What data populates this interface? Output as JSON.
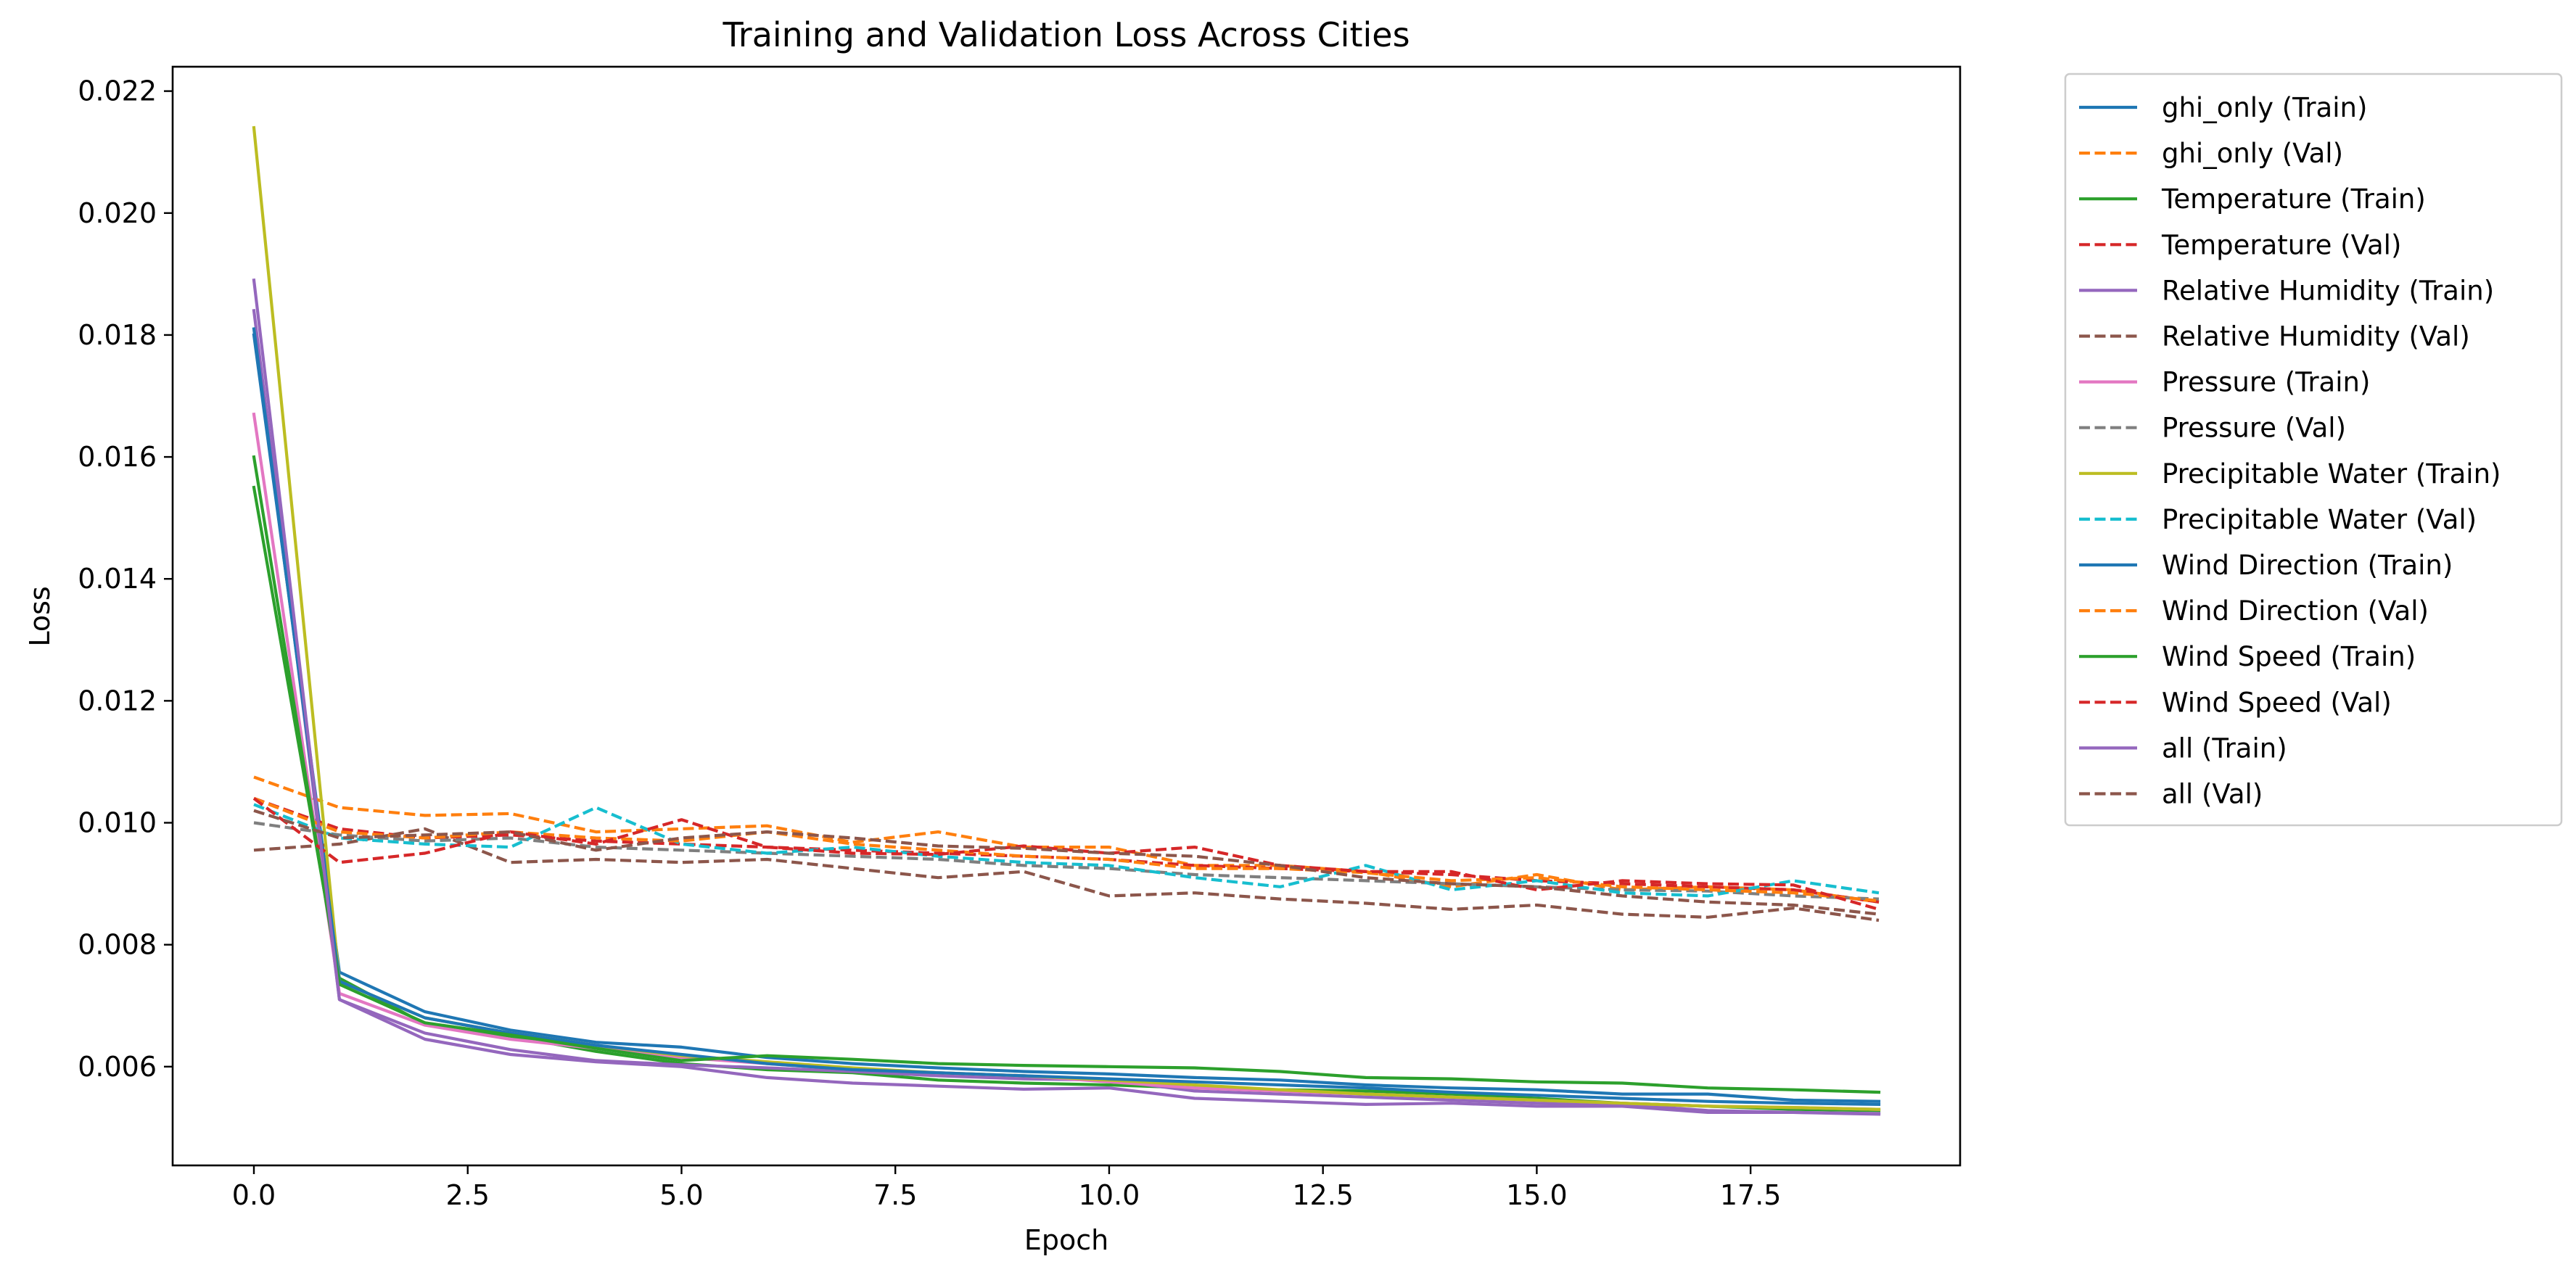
{
  "chart_data": {
    "type": "line",
    "title": "Training and Validation Loss Across Cities",
    "xlabel": "Epoch",
    "ylabel": "Loss",
    "xlim": [
      -0.95,
      19.95
    ],
    "ylim": [
      0.00438,
      0.0224
    ],
    "x_ticks": [
      0,
      2.5,
      5,
      7.5,
      10,
      12.5,
      15,
      17.5
    ],
    "x_tick_labels": [
      "0.0",
      "2.5",
      "5.0",
      "7.5",
      "10.0",
      "12.5",
      "15.0",
      "17.5"
    ],
    "y_ticks": [
      0.006,
      0.008,
      0.01,
      0.012,
      0.014,
      0.016,
      0.018,
      0.02,
      0.022
    ],
    "y_tick_labels": [
      "0.006",
      "0.008",
      "0.010",
      "0.012",
      "0.014",
      "0.016",
      "0.018",
      "0.020",
      "0.022"
    ],
    "grid": false,
    "legend_position": "outside-right",
    "x": [
      0,
      1,
      2,
      3,
      4,
      5,
      6,
      7,
      8,
      9,
      10,
      11,
      12,
      13,
      14,
      15,
      16,
      17,
      18,
      19
    ],
    "series": [
      {
        "name": "ghi_only (Train)",
        "color": "#1f77b4",
        "style": "solid",
        "values": [
          0.018,
          0.00755,
          0.0069,
          0.0066,
          0.0064,
          0.00632,
          0.00615,
          0.00605,
          0.00598,
          0.00592,
          0.00588,
          0.00582,
          0.00578,
          0.0057,
          0.00565,
          0.00562,
          0.00555,
          0.00555,
          0.00545,
          0.00543
        ]
      },
      {
        "name": "ghi_only (Val)",
        "color": "#ff7f0e",
        "style": "dashed",
        "values": [
          0.01075,
          0.01025,
          0.01012,
          0.01015,
          0.00985,
          0.0099,
          0.00995,
          0.00968,
          0.00985,
          0.0096,
          0.0096,
          0.0093,
          0.0093,
          0.0092,
          0.00895,
          0.00915,
          0.0089,
          0.00895,
          0.0089,
          0.0087
        ]
      },
      {
        "name": "Temperature (Train)",
        "color": "#2ca02c",
        "style": "solid",
        "values": [
          0.0155,
          0.00745,
          0.0067,
          0.0065,
          0.00625,
          0.00605,
          0.00595,
          0.0059,
          0.00578,
          0.00573,
          0.0057,
          0.00565,
          0.00562,
          0.0056,
          0.00555,
          0.00548,
          0.0054,
          0.00535,
          0.0053,
          0.00528
        ]
      },
      {
        "name": "Temperature (Val)",
        "color": "#d62728",
        "style": "dashed",
        "values": [
          0.0104,
          0.0099,
          0.00975,
          0.0098,
          0.0097,
          0.00965,
          0.0096,
          0.00955,
          0.0095,
          0.00945,
          0.0094,
          0.0093,
          0.00925,
          0.0092,
          0.00915,
          0.00905,
          0.009,
          0.00895,
          0.0089,
          0.0087
        ]
      },
      {
        "name": "Relative Humidity (Train)",
        "color": "#9467bd",
        "style": "solid",
        "values": [
          0.0184,
          0.0071,
          0.00655,
          0.00628,
          0.0061,
          0.00603,
          0.00598,
          0.00592,
          0.00585,
          0.0058,
          0.00578,
          0.0056,
          0.00555,
          0.0055,
          0.00545,
          0.0054,
          0.00538,
          0.00528,
          0.00525,
          0.00523
        ]
      },
      {
        "name": "Relative Humidity (Val)",
        "color": "#8c564b",
        "style": "dashed",
        "values": [
          0.00955,
          0.00965,
          0.0099,
          0.00935,
          0.0094,
          0.00935,
          0.0094,
          0.00925,
          0.0091,
          0.0092,
          0.0088,
          0.00885,
          0.00875,
          0.00868,
          0.00858,
          0.00865,
          0.0085,
          0.00845,
          0.0086,
          0.0084
        ]
      },
      {
        "name": "Pressure (Train)",
        "color": "#e377c2",
        "style": "solid",
        "values": [
          0.0167,
          0.0072,
          0.00668,
          0.00645,
          0.0063,
          0.00615,
          0.00605,
          0.00595,
          0.0059,
          0.00585,
          0.00575,
          0.00565,
          0.0056,
          0.00555,
          0.0055,
          0.00545,
          0.0054,
          0.00535,
          0.00533,
          0.0053
        ]
      },
      {
        "name": "Pressure (Val)",
        "color": "#7f7f7f",
        "style": "dashed",
        "values": [
          0.01,
          0.0098,
          0.0097,
          0.00975,
          0.0096,
          0.00955,
          0.0095,
          0.00945,
          0.0094,
          0.0093,
          0.00925,
          0.00915,
          0.0091,
          0.00905,
          0.009,
          0.00895,
          0.0089,
          0.00888,
          0.0088,
          0.00875
        ]
      },
      {
        "name": "Precipitable Water (Train)",
        "color": "#bcbd22",
        "style": "solid",
        "values": [
          0.0214,
          0.0074,
          0.0068,
          0.00655,
          0.00635,
          0.00618,
          0.00608,
          0.00598,
          0.0059,
          0.00585,
          0.00578,
          0.0057,
          0.00562,
          0.00555,
          0.0055,
          0.00545,
          0.0054,
          0.00535,
          0.00533,
          0.0053
        ]
      },
      {
        "name": "Precipitable Water (Val)",
        "color": "#17becf",
        "style": "dashed",
        "values": [
          0.0103,
          0.00975,
          0.00965,
          0.0096,
          0.01025,
          0.00965,
          0.0095,
          0.0096,
          0.00945,
          0.00935,
          0.0093,
          0.0091,
          0.00895,
          0.0093,
          0.0089,
          0.00905,
          0.00885,
          0.0088,
          0.00905,
          0.00885
        ]
      },
      {
        "name": "Wind Direction (Train)",
        "color": "#1f77b4",
        "style": "solid",
        "values": [
          0.0181,
          0.0074,
          0.0068,
          0.00655,
          0.00635,
          0.0062,
          0.00605,
          0.00595,
          0.0059,
          0.00585,
          0.0058,
          0.00575,
          0.0057,
          0.00565,
          0.00558,
          0.00553,
          0.00548,
          0.00543,
          0.0054,
          0.00538
        ]
      },
      {
        "name": "Wind Direction (Val)",
        "color": "#ff7f0e",
        "style": "dashed",
        "values": [
          0.0104,
          0.00985,
          0.00975,
          0.00985,
          0.00975,
          0.0097,
          0.00985,
          0.00965,
          0.00955,
          0.00945,
          0.0094,
          0.00925,
          0.00925,
          0.00918,
          0.00905,
          0.0091,
          0.00895,
          0.0089,
          0.00885,
          0.00872
        ]
      },
      {
        "name": "Wind Speed (Train)",
        "color": "#2ca02c",
        "style": "solid",
        "values": [
          0.016,
          0.00735,
          0.00672,
          0.00652,
          0.0063,
          0.0061,
          0.00618,
          0.00612,
          0.00605,
          0.00602,
          0.006,
          0.00598,
          0.00592,
          0.00582,
          0.0058,
          0.00575,
          0.00573,
          0.00565,
          0.00562,
          0.00558
        ]
      },
      {
        "name": "Wind Speed (Val)",
        "color": "#d62728",
        "style": "dashed",
        "values": [
          0.0104,
          0.00935,
          0.0095,
          0.00985,
          0.00965,
          0.01005,
          0.0096,
          0.0095,
          0.00948,
          0.00962,
          0.0095,
          0.0096,
          0.0093,
          0.0092,
          0.0092,
          0.0089,
          0.00905,
          0.009,
          0.00898,
          0.00858
        ]
      },
      {
        "name": "all (Train)",
        "color": "#9467bd",
        "style": "solid",
        "values": [
          0.0189,
          0.0071,
          0.00645,
          0.0062,
          0.00608,
          0.006,
          0.00582,
          0.00573,
          0.00568,
          0.00563,
          0.00565,
          0.00548,
          0.00543,
          0.00538,
          0.0054,
          0.00535,
          0.00535,
          0.00525,
          0.00525,
          0.00522
        ]
      },
      {
        "name": "all (Val)",
        "color": "#8c564b",
        "style": "dashed",
        "values": [
          0.0102,
          0.00975,
          0.0098,
          0.00985,
          0.00955,
          0.00975,
          0.00985,
          0.00975,
          0.00962,
          0.00958,
          0.0095,
          0.00945,
          0.0093,
          0.0091,
          0.009,
          0.00895,
          0.0088,
          0.0087,
          0.00865,
          0.0085
        ]
      }
    ]
  }
}
